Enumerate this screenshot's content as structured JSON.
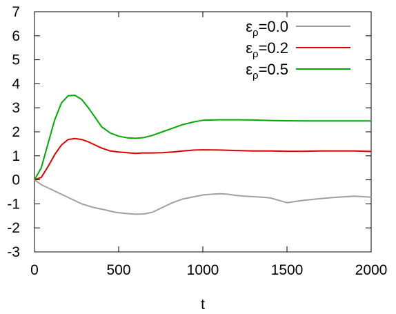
{
  "chart_data": {
    "type": "line",
    "title": "",
    "xlabel": "t",
    "ylabel": "",
    "xlim": [
      0,
      2000
    ],
    "ylim": [
      -3,
      7
    ],
    "xticks": [
      0,
      500,
      1000,
      1500,
      2000
    ],
    "yticks": [
      -3,
      -2,
      -1,
      0,
      1,
      2,
      3,
      4,
      5,
      6,
      7
    ],
    "grid": false,
    "legend_position": "top-right",
    "series": [
      {
        "legend_symbol": "ε",
        "legend_subscript": "ρ",
        "legend_value": "=0.0",
        "color": "#a0a0a0",
        "x": [
          0,
          40,
          100,
          160,
          220,
          280,
          350,
          420,
          480,
          540,
          600,
          650,
          700,
          760,
          820,
          880,
          950,
          1000,
          1050,
          1100,
          1150,
          1200,
          1250,
          1300,
          1350,
          1400,
          1450,
          1500,
          1550,
          1600,
          1700,
          1800,
          1900,
          1950,
          2000
        ],
        "y": [
          0,
          -0.2,
          -0.4,
          -0.6,
          -0.8,
          -1.0,
          -1.15,
          -1.25,
          -1.35,
          -1.4,
          -1.43,
          -1.42,
          -1.35,
          -1.15,
          -0.95,
          -0.8,
          -0.7,
          -0.63,
          -0.6,
          -0.58,
          -0.6,
          -0.65,
          -0.68,
          -0.7,
          -0.72,
          -0.75,
          -0.85,
          -0.95,
          -0.9,
          -0.85,
          -0.78,
          -0.72,
          -0.68,
          -0.7,
          -0.72
        ]
      },
      {
        "legend_symbol": "ε",
        "legend_subscript": "ρ",
        "legend_value": "=0.2",
        "color": "#dd0000",
        "x": [
          0,
          40,
          80,
          120,
          160,
          200,
          240,
          280,
          320,
          360,
          400,
          450,
          500,
          550,
          600,
          640,
          700,
          760,
          820,
          880,
          950,
          1000,
          1100,
          1200,
          1300,
          1400,
          1500,
          1600,
          1700,
          1800,
          1900,
          2000
        ],
        "y": [
          0,
          0.1,
          0.55,
          1.05,
          1.45,
          1.68,
          1.72,
          1.68,
          1.58,
          1.45,
          1.32,
          1.2,
          1.16,
          1.13,
          1.1,
          1.12,
          1.12,
          1.13,
          1.16,
          1.2,
          1.24,
          1.25,
          1.24,
          1.22,
          1.2,
          1.2,
          1.19,
          1.19,
          1.2,
          1.2,
          1.2,
          1.18
        ]
      },
      {
        "legend_symbol": "ε",
        "legend_subscript": "ρ",
        "legend_value": "=0.5",
        "color": "#00aa00",
        "x": [
          0,
          40,
          80,
          120,
          160,
          200,
          240,
          280,
          320,
          360,
          400,
          450,
          500,
          550,
          600,
          650,
          700,
          760,
          820,
          880,
          950,
          1000,
          1100,
          1200,
          1300,
          1400,
          1500,
          1600,
          1700,
          1800,
          1900,
          2000
        ],
        "y": [
          0,
          0.5,
          1.5,
          2.5,
          3.2,
          3.5,
          3.52,
          3.35,
          3.0,
          2.6,
          2.2,
          1.95,
          1.82,
          1.75,
          1.73,
          1.76,
          1.85,
          2.0,
          2.15,
          2.3,
          2.42,
          2.48,
          2.5,
          2.5,
          2.49,
          2.47,
          2.46,
          2.45,
          2.45,
          2.45,
          2.45,
          2.45
        ]
      }
    ]
  }
}
